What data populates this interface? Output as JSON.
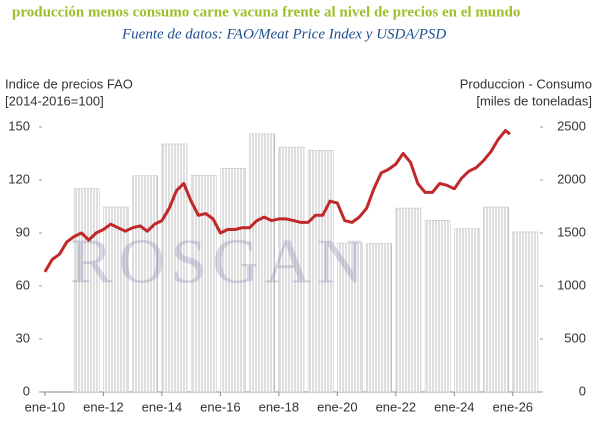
{
  "chart_data": {
    "type": "combo",
    "title": "producción menos consumo carne vacuna frente al nivel de precios en el mundo",
    "subtitle": "Fuente de datos: FAO/Meat Price Index y USDA/PSD",
    "ylabel": [
      "Indice de precios FAO",
      "[2014-2016=100]"
    ],
    "y2label": [
      "Produccion - Consumo",
      "[miles de toneladas]"
    ],
    "watermark": "ROSGAN",
    "xlim": [
      2009.9,
      2026.93
    ],
    "xticks": [
      {
        "value": 2010,
        "label": "ene-10"
      },
      {
        "value": 2012,
        "label": "ene-12"
      },
      {
        "value": 2014,
        "label": "ene-14"
      },
      {
        "value": 2016,
        "label": "ene-16"
      },
      {
        "value": 2018,
        "label": "ene-18"
      },
      {
        "value": 2020,
        "label": "ene-20"
      },
      {
        "value": 2022,
        "label": "ene-22"
      },
      {
        "value": 2024,
        "label": "ene-24"
      },
      {
        "value": 2026,
        "label": "ene-26"
      }
    ],
    "ylim": [
      0,
      150
    ],
    "yticks": [
      0,
      30,
      60,
      90,
      120,
      150
    ],
    "y2lim": [
      0,
      2500
    ],
    "y2ticks": [
      0,
      500,
      1000,
      1500,
      2000,
      2500
    ],
    "series": [
      {
        "type": "bar",
        "axis": "y2",
        "color": "#bdbdbd",
        "x": [
          2011,
          2012,
          2013,
          2014,
          2015,
          2016,
          2017,
          2018,
          2019,
          2020,
          2021,
          2022,
          2023,
          2024,
          2025,
          2026
        ],
        "values": [
          1920,
          1745,
          2040,
          2340,
          2045,
          2110,
          2435,
          2310,
          2280,
          1405,
          1400,
          1735,
          1620,
          1540,
          1745,
          1510
        ]
      },
      {
        "type": "line",
        "color": "#c0282a",
        "x": [
          2010.0,
          2010.25,
          2010.5,
          2010.75,
          2011.0,
          2011.25,
          2011.5,
          2011.75,
          2012.0,
          2012.25,
          2012.5,
          2012.75,
          2013.0,
          2013.25,
          2013.5,
          2013.75,
          2014.0,
          2014.25,
          2014.5,
          2014.75,
          2015.0,
          2015.25,
          2015.5,
          2015.75,
          2016.0,
          2016.25,
          2016.5,
          2016.75,
          2017.0,
          2017.25,
          2017.5,
          2017.75,
          2018.0,
          2018.25,
          2018.5,
          2018.75,
          2019.0,
          2019.25,
          2019.5,
          2019.75,
          2020.0,
          2020.25,
          2020.5,
          2020.75,
          2021.0,
          2021.25,
          2021.5,
          2021.75,
          2022.0,
          2022.25,
          2022.5,
          2022.75,
          2023.0,
          2023.25,
          2023.5,
          2023.75,
          2024.0,
          2024.25,
          2024.5,
          2024.75,
          2025.0,
          2025.25,
          2025.5,
          2025.75,
          2025.9
        ],
        "values": [
          68,
          75,
          78,
          85,
          88,
          90,
          86,
          90,
          92,
          95,
          93,
          91,
          93,
          94,
          91,
          95,
          97,
          104,
          114,
          118,
          108,
          100,
          101,
          98,
          90,
          92,
          92,
          93,
          93,
          97,
          99,
          97,
          98,
          98,
          97,
          96,
          96,
          100,
          100,
          108,
          107,
          97,
          96,
          99,
          104,
          115,
          124,
          126,
          129,
          135,
          130,
          118,
          113,
          113,
          118,
          117,
          115,
          121,
          125,
          127,
          131,
          136,
          143,
          148,
          146
        ]
      }
    ]
  }
}
